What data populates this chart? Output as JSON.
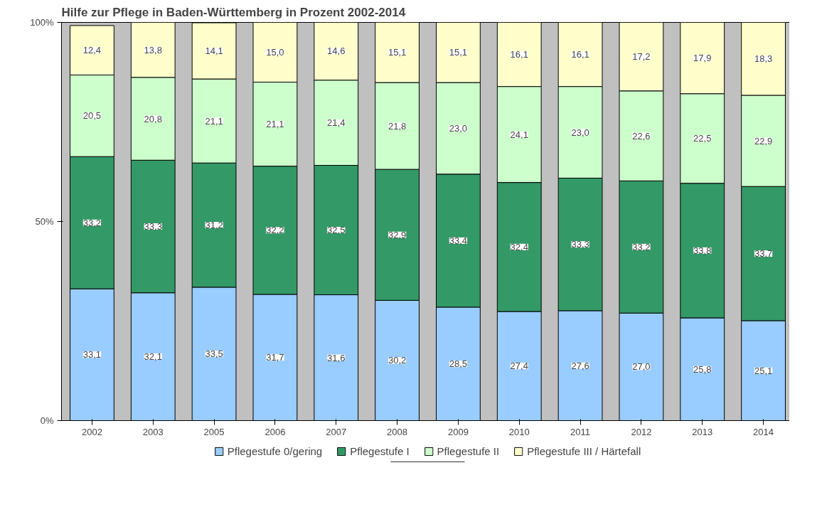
{
  "chart_data": {
    "type": "bar",
    "stacked": true,
    "title": "Hilfe zur Pflege in Baden-Württemberg in Prozent 2002-2014",
    "categories": [
      "2002",
      "2003",
      "2005",
      "2006",
      "2007",
      "2008",
      "2009",
      "2010",
      "2011",
      "2012",
      "2013",
      "2014"
    ],
    "series": [
      {
        "name": "Pflegestufe 0/gering",
        "color": "#99ccff",
        "values": [
          33.1,
          32.1,
          33.5,
          31.7,
          31.6,
          30.2,
          28.5,
          27.4,
          27.6,
          27.0,
          25.8,
          25.1
        ],
        "value_labels": [
          "33,1",
          "32,1",
          "33,5",
          "31,7",
          "31,6",
          "30,2",
          "28,5",
          "27,4",
          "27,6",
          "27,0",
          "25,8",
          "25,1"
        ]
      },
      {
        "name": "Pflegestufe I",
        "color": "#339966",
        "values": [
          33.2,
          33.3,
          31.2,
          32.2,
          32.5,
          32.9,
          33.4,
          32.4,
          33.3,
          33.2,
          33.8,
          33.7
        ],
        "value_labels": [
          "33,2",
          "33,3",
          "31,2",
          "32,2",
          "32,5",
          "32,9",
          "33,4",
          "32,4",
          "33,3",
          "33,2",
          "33,8",
          "33,7"
        ]
      },
      {
        "name": "Pflegestufe II",
        "color": "#ccffcc",
        "values": [
          20.5,
          20.8,
          21.1,
          21.1,
          21.4,
          21.8,
          23.0,
          24.1,
          23.0,
          22.6,
          22.5,
          22.9
        ],
        "value_labels": [
          "20,5",
          "20,8",
          "21,1",
          "21,1",
          "21,4",
          "21,8",
          "23,0",
          "24,1",
          "23,0",
          "22,6",
          "22,5",
          "22,9"
        ]
      },
      {
        "name": "Pflegestufe III / Härtefall",
        "color": "#ffffcc",
        "values": [
          12.4,
          13.8,
          14.1,
          15.0,
          14.6,
          15.1,
          15.1,
          16.1,
          16.1,
          17.2,
          17.9,
          18.3
        ],
        "value_labels": [
          "12,4",
          "13,8",
          "14,1",
          "15,0",
          "14,6",
          "15,1",
          "15,1",
          "16,1",
          "16,1",
          "17,2",
          "17,9",
          "18,3"
        ]
      }
    ],
    "ylim": [
      0,
      100
    ],
    "yticks": [
      {
        "value": 0,
        "label": "0%"
      },
      {
        "value": 50,
        "label": "50%"
      },
      {
        "value": 100,
        "label": "100%"
      }
    ],
    "grid": false,
    "legend": "bottom"
  }
}
